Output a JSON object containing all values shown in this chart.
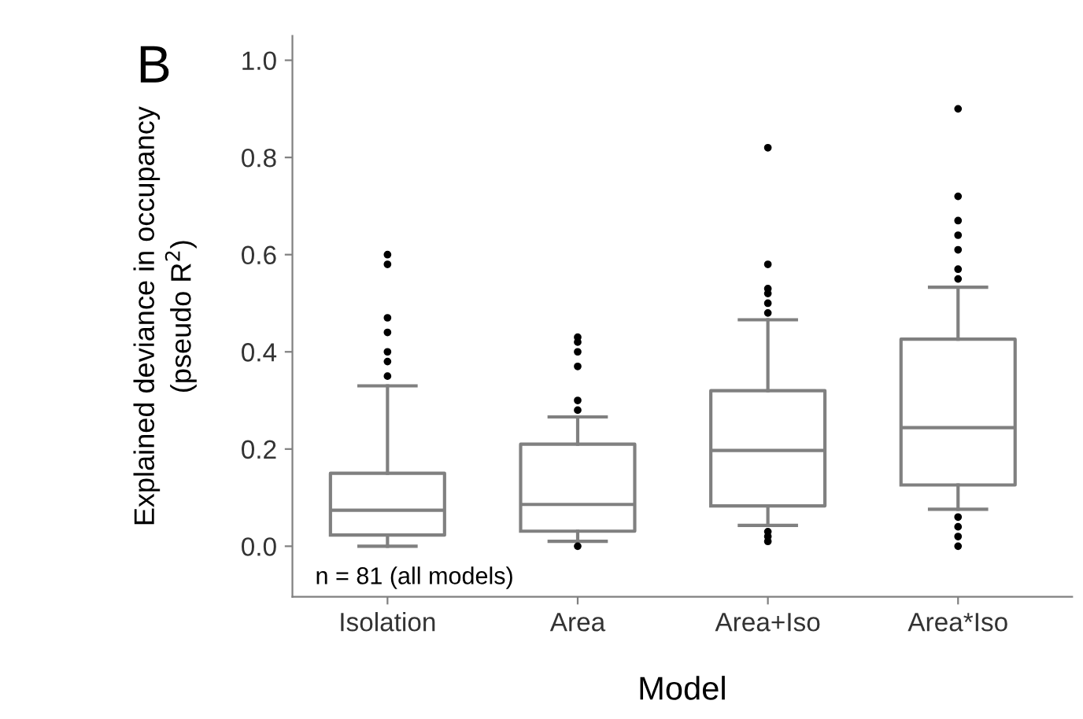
{
  "chart_data": {
    "type": "box",
    "xlabel": "Model",
    "ylabel": "Explained deviance in occupancy\n(pseudo R$^{2}$)",
    "categories": [
      "Isolation",
      "Area",
      "Area+Iso",
      "Area*Iso"
    ],
    "boxes": [
      {
        "low": 0.0,
        "q1": 0.023,
        "median": 0.074,
        "q3": 0.15,
        "high": 0.33,
        "outliers": [
          0.35,
          0.38,
          0.4,
          0.44,
          0.47,
          0.58,
          0.6
        ]
      },
      {
        "low": 0.01,
        "q1": 0.031,
        "median": 0.086,
        "q3": 0.21,
        "high": 0.266,
        "outliers": [
          0.0,
          0.28,
          0.3,
          0.37,
          0.4,
          0.42,
          0.43
        ]
      },
      {
        "low": 0.043,
        "q1": 0.083,
        "median": 0.197,
        "q3": 0.32,
        "high": 0.466,
        "outliers": [
          0.01,
          0.02,
          0.03,
          0.48,
          0.5,
          0.52,
          0.53,
          0.58,
          0.82
        ]
      },
      {
        "low": 0.076,
        "q1": 0.126,
        "median": 0.244,
        "q3": 0.426,
        "high": 0.533,
        "outliers": [
          0.0,
          0.02,
          0.04,
          0.06,
          0.55,
          0.57,
          0.61,
          0.64,
          0.67,
          0.72,
          0.9
        ]
      }
    ],
    "color": "#808080",
    "ylim": [
      -0.104,
      1.05
    ],
    "yticks": [
      {
        "value": 0,
        "label": "0.0"
      },
      0.2,
      0.4,
      0.6,
      0.8,
      {
        "value": 1,
        "label": "1.0"
      }
    ],
    "grid": false,
    "annotations": [
      "B",
      "n = 81 (all models)"
    ]
  }
}
